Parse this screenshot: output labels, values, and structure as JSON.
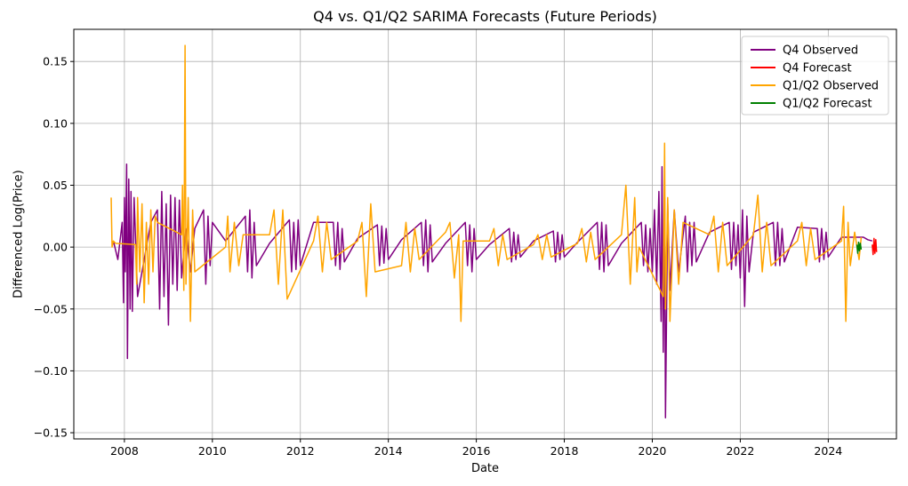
{
  "chart_data": {
    "type": "line",
    "title": "Q4 vs. Q1/Q2 SARIMA Forecasts (Future Periods)",
    "xlabel": "Date",
    "ylabel": "Differenced Log(Price)",
    "xlim": [
      2006.85,
      2025.55
    ],
    "ylim": [
      -0.155,
      0.176
    ],
    "x_ticks": [
      2008,
      2010,
      2012,
      2014,
      2016,
      2018,
      2020,
      2022,
      2024
    ],
    "x_tick_labels": [
      "2008",
      "2010",
      "2012",
      "2014",
      "2016",
      "2018",
      "2020",
      "2022",
      "2024"
    ],
    "y_ticks": [
      -0.15,
      -0.1,
      -0.05,
      0.0,
      0.05,
      0.1,
      0.15
    ],
    "y_tick_labels": [
      "−0.15",
      "−0.10",
      "−0.05",
      "0.00",
      "0.05",
      "0.10",
      "0.15"
    ],
    "grid": true,
    "legend_position": "top-right",
    "series": [
      {
        "name": "Q4 Observed",
        "color": "#800080",
        "x": [
          2007.75,
          2007.85,
          2007.95,
          2007.98,
          2008.0,
          2008.02,
          2008.05,
          2008.07,
          2008.1,
          2008.13,
          2008.15,
          2008.18,
          2008.22,
          2008.3,
          2008.6,
          2008.75,
          2008.8,
          2008.85,
          2008.9,
          2008.95,
          2009.0,
          2009.05,
          2009.1,
          2009.15,
          2009.2,
          2009.25,
          2009.3,
          2009.4,
          2009.5,
          2009.6,
          2009.8,
          2009.85,
          2009.9,
          2009.95,
          2010.0,
          2010.3,
          2010.75,
          2010.8,
          2010.85,
          2010.9,
          2010.95,
          2011.0,
          2011.3,
          2011.75,
          2011.8,
          2011.85,
          2011.9,
          2011.95,
          2012.0,
          2012.3,
          2012.75,
          2012.8,
          2012.85,
          2012.9,
          2012.95,
          2013.0,
          2013.3,
          2013.75,
          2013.8,
          2013.85,
          2013.9,
          2013.95,
          2014.0,
          2014.3,
          2014.75,
          2014.8,
          2014.85,
          2014.9,
          2014.95,
          2015.0,
          2015.3,
          2015.75,
          2015.8,
          2015.85,
          2015.9,
          2015.95,
          2016.0,
          2016.3,
          2016.75,
          2016.8,
          2016.85,
          2016.9,
          2016.95,
          2017.0,
          2017.3,
          2017.75,
          2017.8,
          2017.85,
          2017.9,
          2017.95,
          2018.0,
          2018.3,
          2018.75,
          2018.8,
          2018.85,
          2018.9,
          2018.95,
          2019.0,
          2019.3,
          2019.75,
          2019.8,
          2019.85,
          2019.9,
          2019.95,
          2020.0,
          2020.05,
          2020.1,
          2020.15,
          2020.2,
          2020.22,
          2020.25,
          2020.28,
          2020.3,
          2020.35,
          2020.4,
          2020.5,
          2020.6,
          2020.75,
          2020.8,
          2020.85,
          2020.9,
          2020.95,
          2021.0,
          2021.3,
          2021.75,
          2021.8,
          2021.85,
          2021.9,
          2021.95,
          2022.0,
          2022.05,
          2022.1,
          2022.15,
          2022.2,
          2022.3,
          2022.75,
          2022.8,
          2022.85,
          2022.9,
          2022.95,
          2023.0,
          2023.3,
          2023.75,
          2023.8,
          2023.85,
          2023.9,
          2023.95,
          2024.0,
          2024.3,
          2024.8,
          2024.9,
          2025.0
        ],
        "y": [
          0.005,
          -0.01,
          0.02,
          -0.045,
          0.04,
          -0.02,
          0.067,
          -0.09,
          0.055,
          -0.05,
          0.045,
          -0.052,
          0.04,
          -0.04,
          0.02,
          0.03,
          -0.05,
          0.045,
          -0.04,
          0.035,
          -0.063,
          0.042,
          -0.03,
          0.04,
          -0.035,
          0.038,
          -0.025,
          0.015,
          -0.02,
          0.015,
          0.03,
          -0.03,
          0.025,
          -0.015,
          0.02,
          0.005,
          0.025,
          -0.02,
          0.03,
          -0.025,
          0.02,
          -0.015,
          0.003,
          0.022,
          -0.02,
          0.02,
          -0.018,
          0.022,
          -0.015,
          0.02,
          0.02,
          -0.015,
          0.02,
          -0.018,
          0.015,
          -0.012,
          0.007,
          0.018,
          -0.015,
          0.017,
          -0.013,
          0.015,
          -0.01,
          0.006,
          0.02,
          -0.015,
          0.022,
          -0.02,
          0.018,
          -0.012,
          0.003,
          0.02,
          -0.015,
          0.018,
          -0.02,
          0.015,
          -0.01,
          0.002,
          0.015,
          -0.012,
          0.012,
          -0.01,
          0.01,
          -0.008,
          0.005,
          0.013,
          -0.012,
          0.012,
          -0.01,
          0.01,
          -0.008,
          0.004,
          0.02,
          -0.018,
          0.02,
          -0.02,
          0.018,
          -0.015,
          0.003,
          0.02,
          -0.015,
          0.018,
          -0.02,
          0.015,
          -0.02,
          0.03,
          -0.03,
          0.045,
          -0.06,
          0.065,
          -0.085,
          0.04,
          -0.138,
          0.035,
          -0.035,
          0.03,
          -0.02,
          0.025,
          -0.02,
          0.02,
          -0.015,
          0.02,
          -0.012,
          0.012,
          0.02,
          -0.018,
          0.02,
          -0.015,
          0.018,
          -0.025,
          0.03,
          -0.048,
          0.025,
          -0.02,
          0.012,
          0.02,
          -0.015,
          0.02,
          -0.015,
          0.015,
          -0.012,
          0.016,
          0.015,
          -0.012,
          0.015,
          -0.01,
          0.012,
          -0.008,
          0.008,
          0.008,
          0.006,
          0.005
        ]
      },
      {
        "name": "Q4 Forecast",
        "color": "#ff0000",
        "x": [
          2025.0,
          2025.02,
          2025.04,
          2025.06,
          2025.08,
          2025.1
        ],
        "y": [
          0.002,
          -0.006,
          0.007,
          -0.005,
          0.006,
          -0.004
        ]
      },
      {
        "name": "Q1/Q2 Observed",
        "color": "#ffa500",
        "x": [
          2007.7,
          2007.72,
          2007.75,
          2007.8,
          2008.25,
          2008.28,
          2008.3,
          2008.35,
          2008.4,
          2008.45,
          2008.5,
          2008.55,
          2008.6,
          2008.65,
          2008.7,
          2008.75,
          2009.3,
          2009.32,
          2009.35,
          2009.38,
          2009.4,
          2009.45,
          2009.5,
          2009.55,
          2009.6,
          2010.3,
          2010.35,
          2010.4,
          2010.5,
          2010.6,
          2010.7,
          2011.3,
          2011.4,
          2011.5,
          2011.6,
          2011.7,
          2012.3,
          2012.4,
          2012.5,
          2012.6,
          2012.7,
          2013.3,
          2013.4,
          2013.5,
          2013.6,
          2013.7,
          2014.3,
          2014.4,
          2014.5,
          2014.6,
          2014.7,
          2015.3,
          2015.4,
          2015.5,
          2015.6,
          2015.65,
          2015.7,
          2016.3,
          2016.4,
          2016.5,
          2016.6,
          2016.7,
          2017.3,
          2017.4,
          2017.5,
          2017.6,
          2017.7,
          2018.3,
          2018.4,
          2018.5,
          2018.6,
          2018.7,
          2019.3,
          2019.4,
          2019.5,
          2019.6,
          2019.65,
          2019.7,
          2020.25,
          2020.28,
          2020.3,
          2020.35,
          2020.4,
          2020.5,
          2020.6,
          2020.7,
          2021.3,
          2021.4,
          2021.5,
          2021.6,
          2021.7,
          2022.3,
          2022.4,
          2022.5,
          2022.6,
          2022.7,
          2023.3,
          2023.4,
          2023.5,
          2023.6,
          2023.7,
          2024.3,
          2024.35,
          2024.4,
          2024.45,
          2024.5,
          2024.6,
          2024.7,
          2024.75
        ],
        "y": [
          0.04,
          0.0,
          0.005,
          0.003,
          0.002,
          -0.03,
          0.04,
          -0.02,
          0.035,
          -0.045,
          0.02,
          -0.03,
          0.03,
          -0.02,
          0.025,
          0.02,
          0.01,
          0.05,
          -0.035,
          0.163,
          -0.03,
          0.04,
          -0.06,
          0.03,
          -0.02,
          0.0,
          0.025,
          -0.02,
          0.02,
          -0.015,
          0.01,
          0.01,
          0.03,
          -0.03,
          0.03,
          -0.042,
          0.005,
          0.025,
          -0.02,
          0.02,
          -0.01,
          0.005,
          0.02,
          -0.04,
          0.035,
          -0.02,
          -0.015,
          0.02,
          -0.02,
          0.015,
          -0.01,
          0.012,
          0.02,
          -0.025,
          0.01,
          -0.06,
          0.005,
          0.005,
          0.015,
          -0.015,
          0.01,
          -0.01,
          0.002,
          0.01,
          -0.01,
          0.01,
          -0.008,
          0.003,
          0.015,
          -0.012,
          0.012,
          -0.01,
          0.01,
          0.05,
          -0.03,
          0.04,
          -0.02,
          0.0,
          -0.04,
          0.084,
          -0.05,
          0.04,
          -0.06,
          0.03,
          -0.03,
          0.02,
          0.01,
          0.025,
          -0.02,
          0.02,
          -0.015,
          0.01,
          0.042,
          -0.02,
          0.02,
          -0.015,
          0.005,
          0.02,
          -0.015,
          0.015,
          -0.01,
          0.005,
          0.033,
          -0.06,
          0.02,
          -0.015,
          0.012,
          -0.01,
          0.008
        ]
      },
      {
        "name": "Q1/Q2 Forecast",
        "color": "#008000",
        "x": [
          2024.65,
          2024.67,
          2024.69,
          2024.71,
          2024.73,
          2024.75
        ],
        "y": [
          0.002,
          -0.005,
          0.004,
          -0.003,
          0.003,
          -0.002
        ]
      }
    ]
  }
}
